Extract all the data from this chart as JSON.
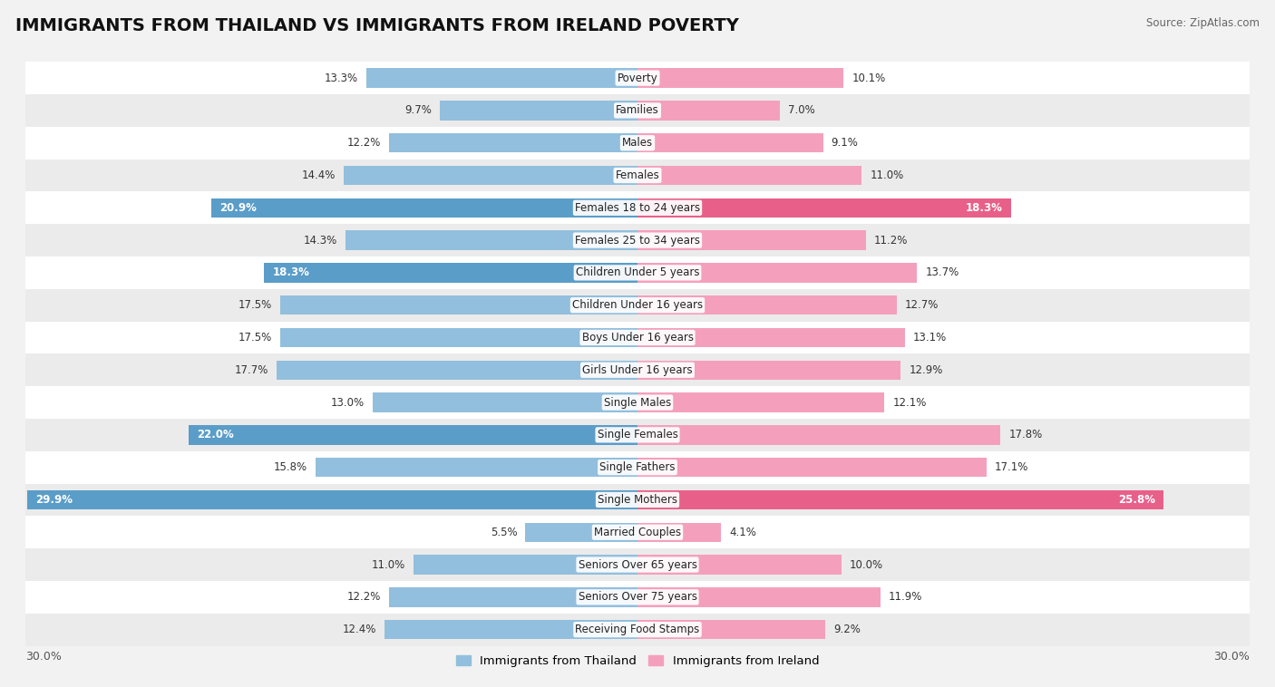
{
  "title": "IMMIGRANTS FROM THAILAND VS IMMIGRANTS FROM IRELAND POVERTY",
  "source": "Source: ZipAtlas.com",
  "categories": [
    "Poverty",
    "Families",
    "Males",
    "Females",
    "Females 18 to 24 years",
    "Females 25 to 34 years",
    "Children Under 5 years",
    "Children Under 16 years",
    "Boys Under 16 years",
    "Girls Under 16 years",
    "Single Males",
    "Single Females",
    "Single Fathers",
    "Single Mothers",
    "Married Couples",
    "Seniors Over 65 years",
    "Seniors Over 75 years",
    "Receiving Food Stamps"
  ],
  "thailand_values": [
    13.3,
    9.7,
    12.2,
    14.4,
    20.9,
    14.3,
    18.3,
    17.5,
    17.5,
    17.7,
    13.0,
    22.0,
    15.8,
    29.9,
    5.5,
    11.0,
    12.2,
    12.4
  ],
  "ireland_values": [
    10.1,
    7.0,
    9.1,
    11.0,
    18.3,
    11.2,
    13.7,
    12.7,
    13.1,
    12.9,
    12.1,
    17.8,
    17.1,
    25.8,
    4.1,
    10.0,
    11.9,
    9.2
  ],
  "thailand_color": "#92bfdd",
  "ireland_color": "#f4a0bc",
  "thailand_highlight_color": "#5a9dc8",
  "ireland_highlight_color": "#e8608a",
  "background_color": "#f2f2f2",
  "row_even_color": "#ffffff",
  "row_odd_color": "#ebebeb",
  "axis_limit": 30.0,
  "bar_height": 0.6,
  "legend_label_thailand": "Immigrants from Thailand",
  "legend_label_ireland": "Immigrants from Ireland",
  "title_fontsize": 14,
  "label_fontsize": 8.5,
  "value_fontsize": 8.5,
  "highlight_threshold": 18.0
}
